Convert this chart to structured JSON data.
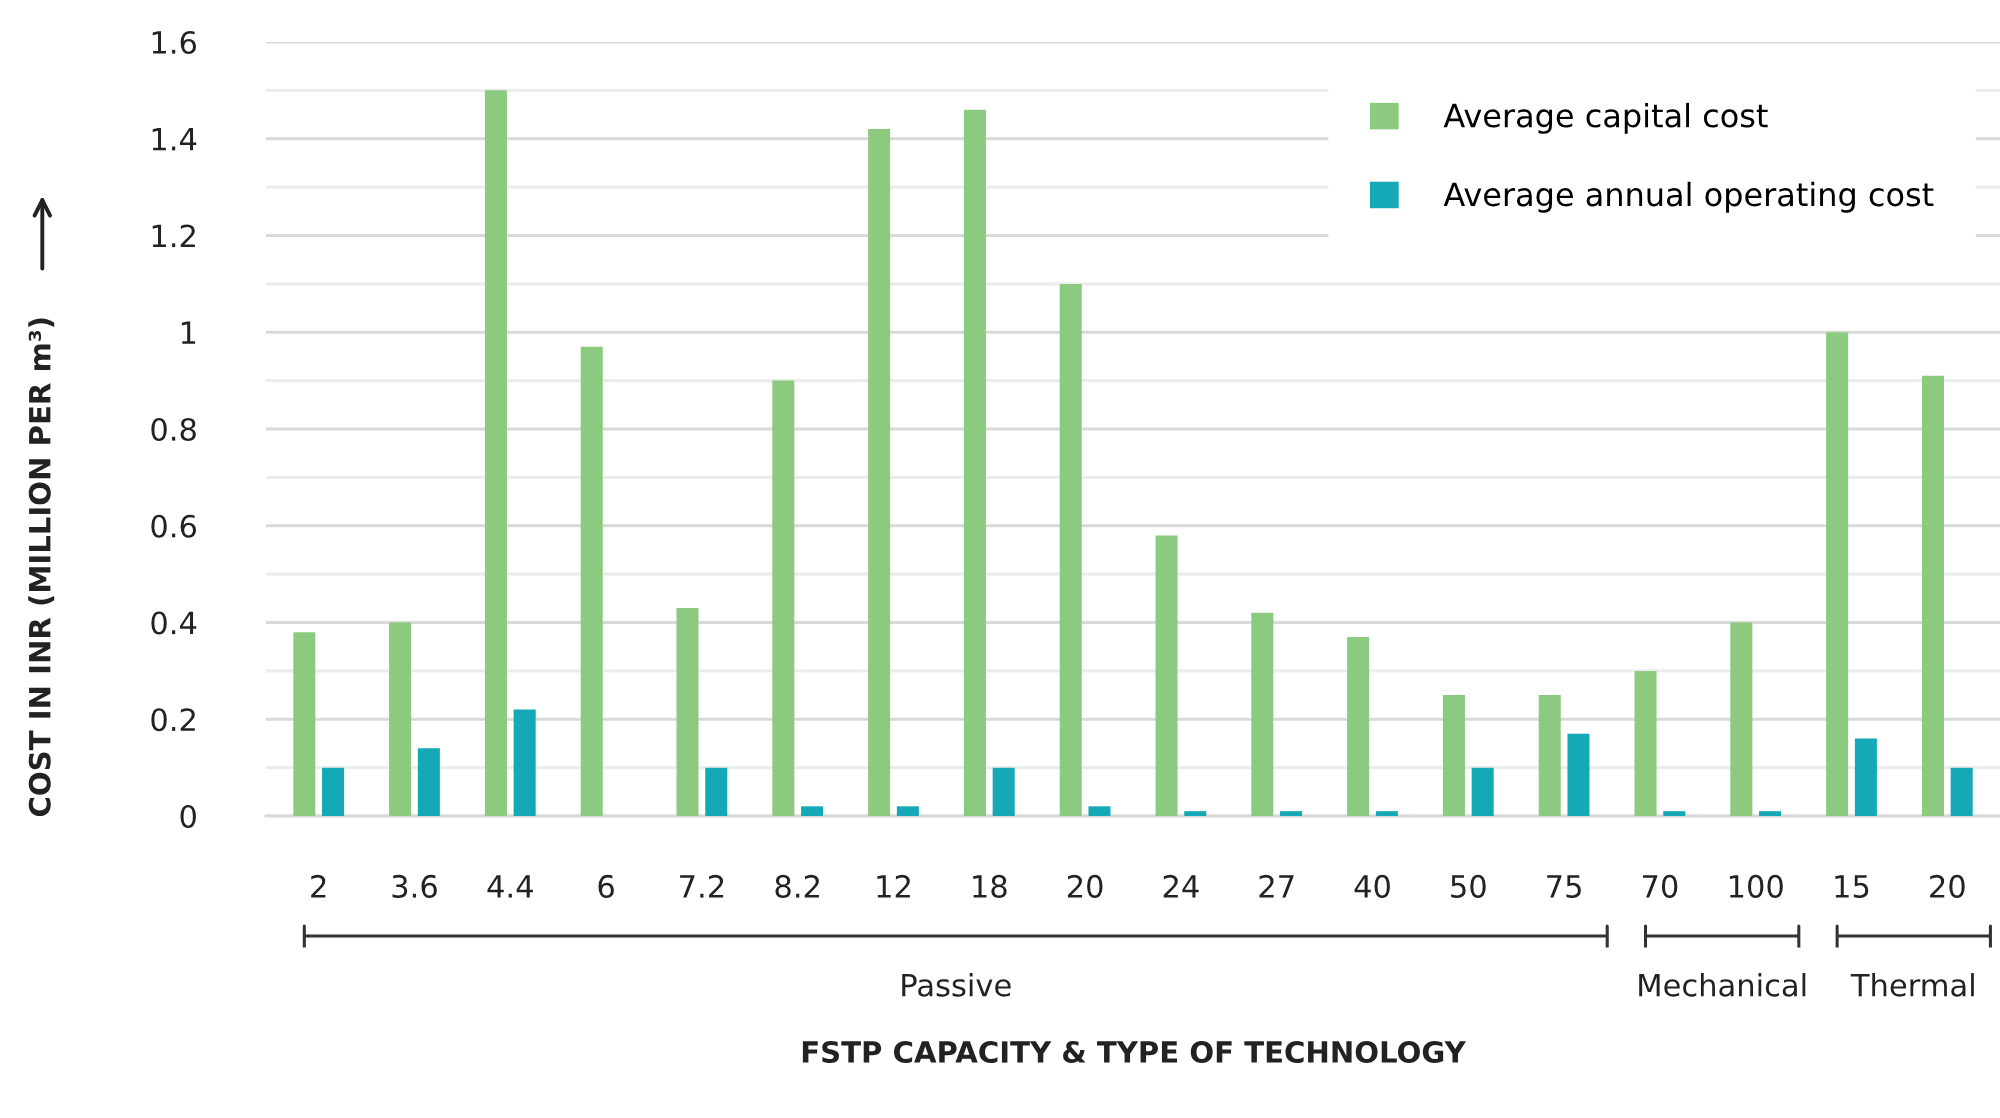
{
  "chart_data": {
    "type": "bar",
    "xlabel": "FSTP CAPACITY & TYPE OF TECHNOLOGY",
    "ylabel": "COST IN INR (MILLION PER m³)",
    "categories": [
      "2",
      "3.6",
      "4.4",
      "6",
      "7.2",
      "8.2",
      "12",
      "18",
      "20",
      "24",
      "27",
      "40",
      "50",
      "75",
      "70",
      "100",
      "15",
      "20"
    ],
    "series": [
      {
        "name": "Average capital cost",
        "color": "#8cca7f",
        "values": [
          0.38,
          0.4,
          1.5,
          0.97,
          0.43,
          0.9,
          1.42,
          1.46,
          1.1,
          0.58,
          0.42,
          0.37,
          0.25,
          0.25,
          0.3,
          0.4,
          1.0,
          0.91
        ]
      },
      {
        "name": "Average annual operating cost",
        "color": "#15a8b7",
        "values": [
          0.1,
          0.14,
          0.22,
          null,
          0.1,
          0.02,
          0.02,
          0.1,
          0.02,
          0.01,
          0.01,
          0.01,
          0.1,
          0.17,
          0.01,
          0.01,
          0.16,
          0.1
        ]
      }
    ],
    "ylim": [
      0,
      1.6
    ],
    "yticks": [
      0,
      {
        "value": 0.1,
        "label": null
      },
      0.2,
      {
        "value": 0.3,
        "label": null
      },
      0.4,
      {
        "value": 0.5,
        "label": null
      },
      0.6,
      {
        "value": 0.7,
        "label": null
      },
      0.8,
      {
        "value": 0.9,
        "label": null
      },
      1,
      {
        "value": 1.1,
        "label": null
      },
      1.2,
      {
        "value": 1.3,
        "label": null
      },
      1.4,
      {
        "value": 1.5,
        "label": null
      },
      1.6
    ],
    "grid": "y",
    "legend": "top right",
    "annotations": [
      "Passive",
      "Mechanical",
      "Thermal"
    ]
  }
}
